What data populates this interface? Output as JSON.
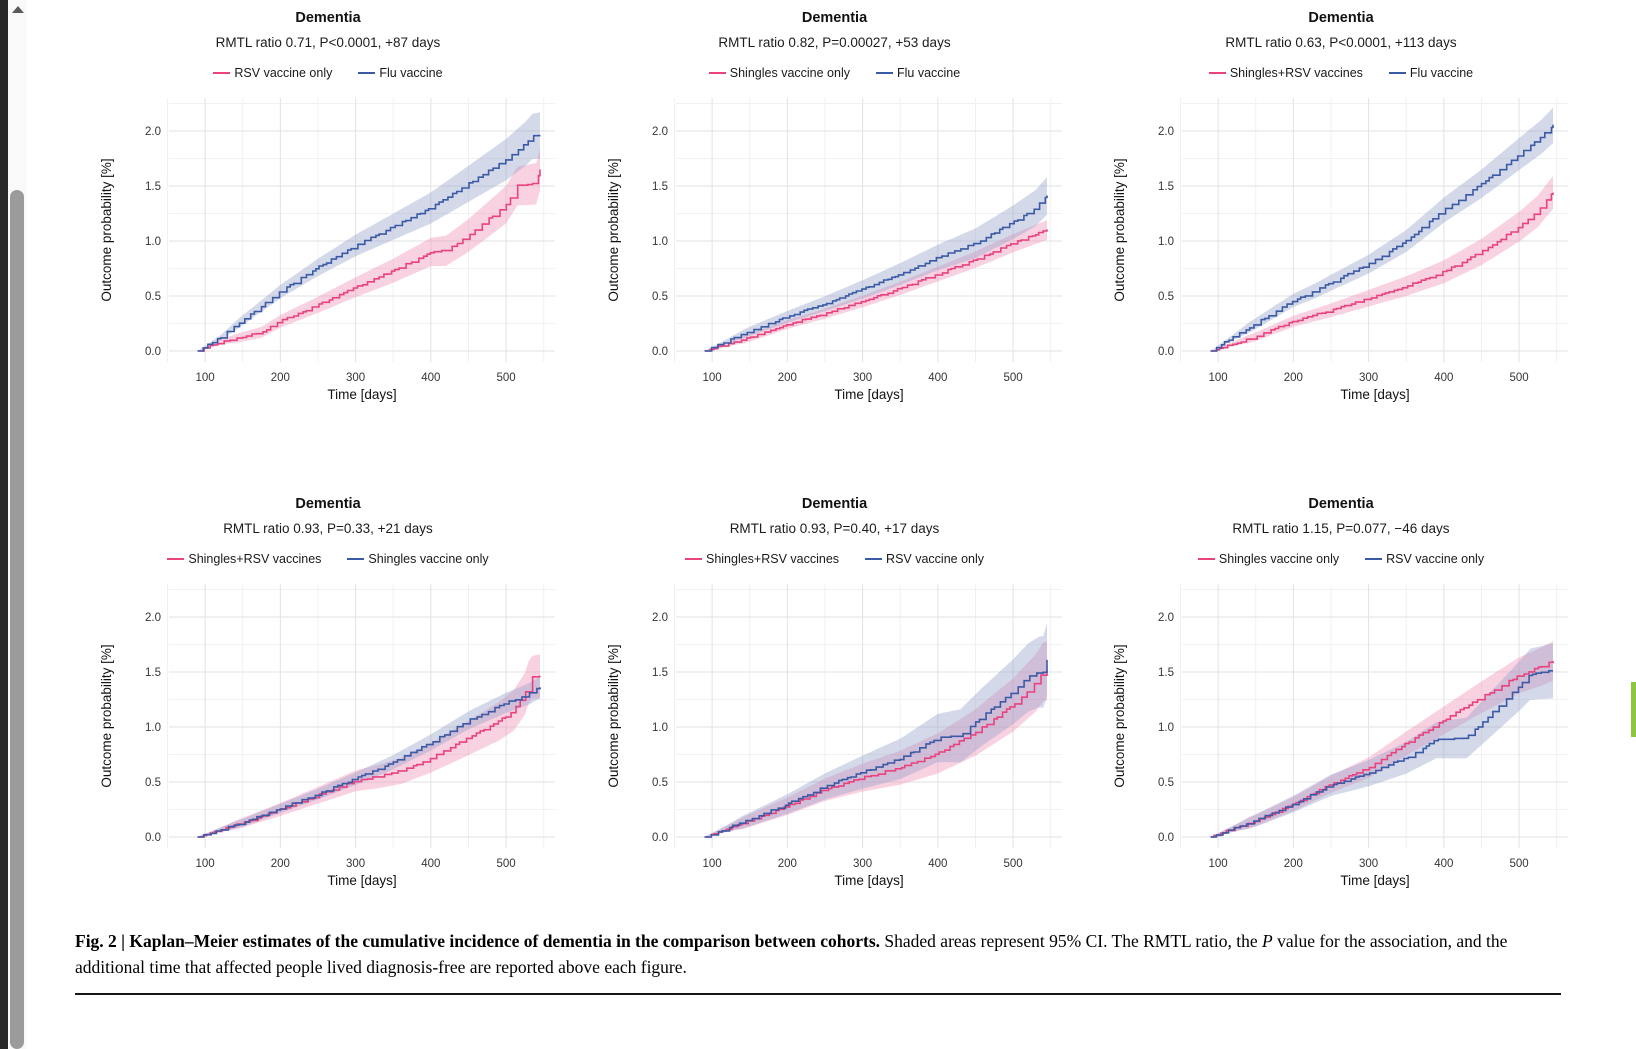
{
  "window": {
    "scroll_up_arrow": "up-arrow",
    "scroll_marker_color": "#8dc63f"
  },
  "caption": {
    "bold": "Fig. 2 | Kaplan–Meier estimates of the cumulative incidence of dementia in the comparison between cohorts.",
    "text_before_italic": " Shaded areas represent 95% CI. The RMTL ratio, the ",
    "italic": "P",
    "text_after_italic": " value for the association, and the additional time that affected people lived diagnosis-free are reported above each figure."
  },
  "chart_data": [
    {
      "type": "line",
      "title": "Dementia",
      "subtitle": "RMTL ratio 0.71, P<0.0001, +87 days",
      "xlabel": "Time [days]",
      "ylabel": "Outcome probability [%]",
      "x_ticks": [
        100,
        200,
        300,
        400,
        500
      ],
      "y_ticks": [
        0.0,
        0.5,
        1.0,
        1.5,
        2.0
      ],
      "xlim": [
        52,
        565
      ],
      "ylim": [
        -0.1,
        2.3
      ],
      "grid": true,
      "legend_position": "top",
      "series": [
        {
          "name": "RSV vaccine only",
          "color": "#e8437f",
          "band_color": "#ef8ab4",
          "points": [
            [
              90,
              0
            ],
            [
              120,
              0.08
            ],
            [
              150,
              0.13
            ],
            [
              175,
              0.17
            ],
            [
              200,
              0.27
            ],
            [
              250,
              0.42
            ],
            [
              300,
              0.58
            ],
            [
              350,
              0.73
            ],
            [
              400,
              0.9
            ],
            [
              420,
              0.91
            ],
            [
              450,
              1.05
            ],
            [
              500,
              1.33
            ],
            [
              515,
              1.5
            ],
            [
              540,
              1.52
            ],
            [
              545,
              1.65
            ]
          ],
          "ci_halfwidth": [
            0.03,
            0.19
          ]
        },
        {
          "name": "Flu vaccine",
          "color": "#3b5aa5",
          "band_color": "#8d9cc8",
          "points": [
            [
              90,
              0
            ],
            [
              120,
              0.12
            ],
            [
              150,
              0.28
            ],
            [
              200,
              0.54
            ],
            [
              250,
              0.76
            ],
            [
              300,
              0.96
            ],
            [
              350,
              1.13
            ],
            [
              400,
              1.3
            ],
            [
              450,
              1.52
            ],
            [
              500,
              1.74
            ],
            [
              525,
              1.88
            ],
            [
              535,
              1.95
            ],
            [
              545,
              1.96
            ]
          ],
          "ci_halfwidth": [
            0.03,
            0.21
          ]
        }
      ]
    },
    {
      "type": "line",
      "title": "Dementia",
      "subtitle": "RMTL ratio 0.82, P=0.00027, +53 days",
      "xlabel": "Time [days]",
      "ylabel": "Outcome probability [%]",
      "x_ticks": [
        100,
        200,
        300,
        400,
        500
      ],
      "y_ticks": [
        0.0,
        0.5,
        1.0,
        1.5,
        2.0
      ],
      "xlim": [
        52,
        565
      ],
      "ylim": [
        -0.1,
        2.3
      ],
      "grid": true,
      "legend_position": "top",
      "series": [
        {
          "name": "Shingles vaccine only",
          "color": "#e8437f",
          "band_color": "#ef8ab4",
          "points": [
            [
              90,
              0
            ],
            [
              150,
              0.12
            ],
            [
              200,
              0.24
            ],
            [
              250,
              0.34
            ],
            [
              300,
              0.45
            ],
            [
              350,
              0.57
            ],
            [
              400,
              0.7
            ],
            [
              450,
              0.83
            ],
            [
              500,
              0.98
            ],
            [
              545,
              1.1
            ]
          ],
          "ci_halfwidth": [
            0.03,
            0.09
          ]
        },
        {
          "name": "Flu vaccine",
          "color": "#3b5aa5",
          "band_color": "#8d9cc8",
          "points": [
            [
              90,
              0
            ],
            [
              150,
              0.18
            ],
            [
              200,
              0.31
            ],
            [
              250,
              0.43
            ],
            [
              300,
              0.56
            ],
            [
              350,
              0.7
            ],
            [
              400,
              0.85
            ],
            [
              450,
              0.98
            ],
            [
              500,
              1.17
            ],
            [
              530,
              1.3
            ],
            [
              545,
              1.41
            ]
          ],
          "ci_halfwidth": [
            0.03,
            0.17
          ]
        }
      ]
    },
    {
      "type": "line",
      "title": "Dementia",
      "subtitle": "RMTL ratio 0.63, P<0.0001, +113 days",
      "xlabel": "Time [days]",
      "ylabel": "Outcome probability [%]",
      "x_ticks": [
        100,
        200,
        300,
        400,
        500
      ],
      "y_ticks": [
        0.0,
        0.5,
        1.0,
        1.5,
        2.0
      ],
      "xlim": [
        52,
        565
      ],
      "ylim": [
        -0.1,
        2.3
      ],
      "grid": true,
      "legend_position": "top",
      "series": [
        {
          "name": "Shingles+RSV vaccines",
          "color": "#e8437f",
          "band_color": "#ef8ab4",
          "points": [
            [
              90,
              0
            ],
            [
              150,
              0.13
            ],
            [
              200,
              0.27
            ],
            [
              250,
              0.37
            ],
            [
              300,
              0.48
            ],
            [
              350,
              0.59
            ],
            [
              400,
              0.72
            ],
            [
              450,
              0.9
            ],
            [
              500,
              1.13
            ],
            [
              525,
              1.27
            ],
            [
              540,
              1.4
            ],
            [
              545,
              1.44
            ]
          ],
          "ci_halfwidth": [
            0.03,
            0.15
          ]
        },
        {
          "name": "Flu vaccine",
          "color": "#3b5aa5",
          "band_color": "#8d9cc8",
          "points": [
            [
              90,
              0
            ],
            [
              150,
              0.25
            ],
            [
              200,
              0.46
            ],
            [
              230,
              0.55
            ],
            [
              250,
              0.62
            ],
            [
              300,
              0.79
            ],
            [
              350,
              1.0
            ],
            [
              400,
              1.28
            ],
            [
              450,
              1.52
            ],
            [
              500,
              1.79
            ],
            [
              530,
              1.95
            ],
            [
              545,
              2.05
            ]
          ],
          "ci_halfwidth": [
            0.04,
            0.16
          ]
        }
      ]
    },
    {
      "type": "line",
      "title": "Dementia",
      "subtitle": "RMTL ratio 0.93, P=0.33, +21 days",
      "xlabel": "Time [days]",
      "ylabel": "Outcome probability [%]",
      "x_ticks": [
        100,
        200,
        300,
        400,
        500
      ],
      "y_ticks": [
        0.0,
        0.5,
        1.0,
        1.5,
        2.0
      ],
      "xlim": [
        52,
        565
      ],
      "ylim": [
        -0.1,
        2.3
      ],
      "grid": true,
      "legend_position": "top",
      "series": [
        {
          "name": "Shingles+RSV vaccines",
          "color": "#e8437f",
          "band_color": "#ef8ab4",
          "points": [
            [
              90,
              0
            ],
            [
              150,
              0.13
            ],
            [
              200,
              0.25
            ],
            [
              250,
              0.38
            ],
            [
              300,
              0.51
            ],
            [
              330,
              0.55
            ],
            [
              360,
              0.6
            ],
            [
              400,
              0.72
            ],
            [
              450,
              0.9
            ],
            [
              490,
              1.05
            ],
            [
              510,
              1.15
            ],
            [
              525,
              1.3
            ],
            [
              532,
              1.45
            ],
            [
              545,
              1.46
            ]
          ],
          "ci_halfwidth": [
            0.03,
            0.2
          ]
        },
        {
          "name": "Shingles vaccine only",
          "color": "#3b5aa5",
          "band_color": "#8d9cc8",
          "points": [
            [
              90,
              0
            ],
            [
              150,
              0.13
            ],
            [
              200,
              0.26
            ],
            [
              250,
              0.39
            ],
            [
              300,
              0.53
            ],
            [
              350,
              0.68
            ],
            [
              400,
              0.86
            ],
            [
              450,
              1.06
            ],
            [
              500,
              1.22
            ],
            [
              530,
              1.3
            ],
            [
              545,
              1.36
            ]
          ],
          "ci_halfwidth": [
            0.03,
            0.1
          ]
        }
      ]
    },
    {
      "type": "line",
      "title": "Dementia",
      "subtitle": "RMTL ratio 0.93, P=0.40, +17 days",
      "xlabel": "Time [days]",
      "ylabel": "Outcome probability [%]",
      "x_ticks": [
        100,
        200,
        300,
        400,
        500
      ],
      "y_ticks": [
        0.0,
        0.5,
        1.0,
        1.5,
        2.0
      ],
      "xlim": [
        52,
        565
      ],
      "ylim": [
        -0.1,
        2.3
      ],
      "grid": true,
      "legend_position": "top",
      "series": [
        {
          "name": "Shingles+RSV vaccines",
          "color": "#e8437f",
          "band_color": "#ef8ab4",
          "points": [
            [
              90,
              0
            ],
            [
              150,
              0.15
            ],
            [
              200,
              0.28
            ],
            [
              250,
              0.43
            ],
            [
              300,
              0.54
            ],
            [
              350,
              0.63
            ],
            [
              400,
              0.76
            ],
            [
              450,
              0.95
            ],
            [
              500,
              1.2
            ],
            [
              530,
              1.4
            ],
            [
              540,
              1.5
            ],
            [
              545,
              1.51
            ]
          ],
          "ci_halfwidth": [
            0.04,
            0.27
          ]
        },
        {
          "name": "RSV vaccine only",
          "color": "#3b5aa5",
          "band_color": "#8d9cc8",
          "points": [
            [
              90,
              0
            ],
            [
              150,
              0.16
            ],
            [
              200,
              0.3
            ],
            [
              250,
              0.46
            ],
            [
              300,
              0.59
            ],
            [
              350,
              0.71
            ],
            [
              400,
              0.9
            ],
            [
              430,
              0.92
            ],
            [
              460,
              1.1
            ],
            [
              500,
              1.32
            ],
            [
              520,
              1.45
            ],
            [
              535,
              1.5
            ],
            [
              543,
              1.5
            ],
            [
              545,
              1.61
            ]
          ],
          "ci_halfwidth": [
            0.04,
            0.33
          ]
        }
      ]
    },
    {
      "type": "line",
      "title": "Dementia",
      "subtitle": "RMTL ratio 1.15, P=0.077, −46 days",
      "xlabel": "Time [days]",
      "ylabel": "Outcome probability [%]",
      "x_ticks": [
        100,
        200,
        300,
        400,
        500
      ],
      "y_ticks": [
        0.0,
        0.5,
        1.0,
        1.5,
        2.0
      ],
      "xlim": [
        52,
        565
      ],
      "ylim": [
        -0.1,
        2.3
      ],
      "grid": true,
      "legend_position": "top",
      "series": [
        {
          "name": "Shingles vaccine only",
          "color": "#e8437f",
          "band_color": "#ef8ab4",
          "points": [
            [
              90,
              0
            ],
            [
              150,
              0.15
            ],
            [
              200,
              0.3
            ],
            [
              250,
              0.48
            ],
            [
              300,
              0.63
            ],
            [
              350,
              0.85
            ],
            [
              400,
              1.06
            ],
            [
              450,
              1.27
            ],
            [
              500,
              1.47
            ],
            [
              530,
              1.55
            ],
            [
              545,
              1.6
            ]
          ],
          "ci_halfwidth": [
            0.04,
            0.18
          ]
        },
        {
          "name": "RSV vaccine only",
          "color": "#3b5aa5",
          "band_color": "#8d9cc8",
          "points": [
            [
              90,
              0
            ],
            [
              150,
              0.15
            ],
            [
              200,
              0.3
            ],
            [
              250,
              0.47
            ],
            [
              300,
              0.58
            ],
            [
              350,
              0.72
            ],
            [
              390,
              0.88
            ],
            [
              430,
              0.9
            ],
            [
              460,
              1.1
            ],
            [
              500,
              1.37
            ],
            [
              515,
              1.48
            ],
            [
              545,
              1.51
            ]
          ],
          "ci_halfwidth": [
            0.04,
            0.25
          ]
        }
      ]
    }
  ]
}
